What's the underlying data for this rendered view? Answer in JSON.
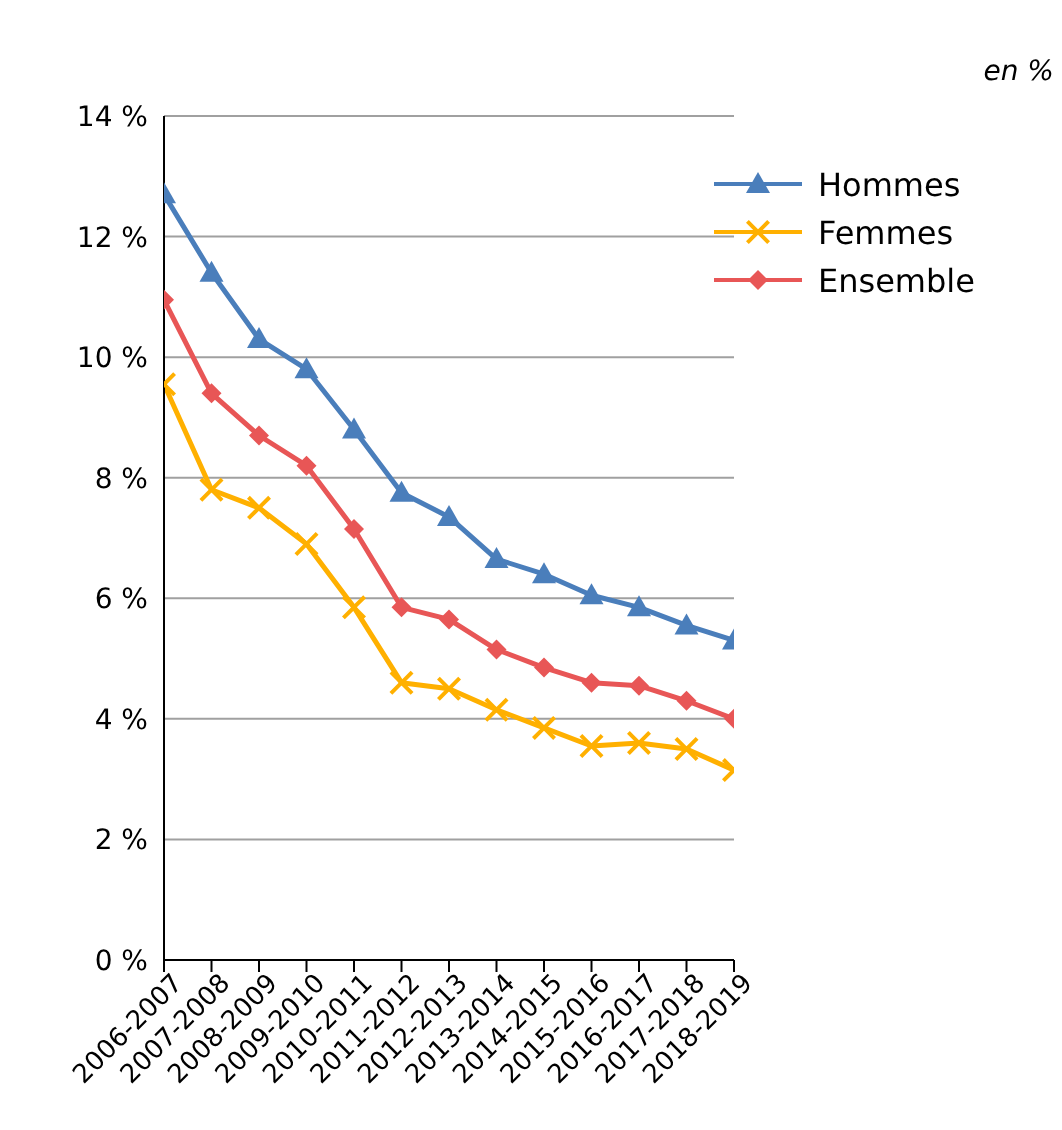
{
  "chart_data": {
    "type": "line",
    "annotations": [
      "en %"
    ],
    "categories": [
      "2006-2007",
      "2007-2008",
      "2008-2009",
      "2009-2010",
      "2010-2011",
      "2011-2012",
      "2012-2013",
      "2013-2014",
      "2014-2015",
      "2015-2016",
      "2016-2017",
      "2017-2018",
      "2018-2019"
    ],
    "series": [
      {
        "name": "Hommes",
        "color": "#4a7ebb",
        "marker": "triangle",
        "values": [
          12.7,
          11.4,
          10.3,
          9.8,
          8.8,
          7.75,
          7.35,
          6.65,
          6.4,
          6.05,
          5.85,
          5.55,
          5.3
        ]
      },
      {
        "name": "Femmes",
        "color": "#ffb000",
        "marker": "cross",
        "values": [
          9.55,
          7.8,
          7.5,
          6.9,
          5.85,
          4.6,
          4.5,
          4.15,
          3.85,
          3.55,
          3.6,
          3.5,
          3.15
        ]
      },
      {
        "name": "Ensemble",
        "color": "#e85656",
        "marker": "diamond",
        "values": [
          10.95,
          9.4,
          8.7,
          8.2,
          7.15,
          5.85,
          5.65,
          5.15,
          4.85,
          4.6,
          4.55,
          4.3,
          4.0
        ]
      }
    ],
    "ylim": [
      0,
      14
    ],
    "yticks": [
      {
        "value": 0,
        "label": "0 %"
      },
      {
        "value": 2,
        "label": "2 %"
      },
      {
        "value": 4,
        "label": "4 %"
      },
      {
        "value": 6,
        "label": "6 %"
      },
      {
        "value": 8,
        "label": "8 %"
      },
      {
        "value": 10,
        "label": "10 %"
      },
      {
        "value": 12,
        "label": "12 %"
      },
      {
        "value": 14,
        "label": "14 %"
      }
    ],
    "grid": "y",
    "legend": "top right",
    "line_style": "solid"
  }
}
